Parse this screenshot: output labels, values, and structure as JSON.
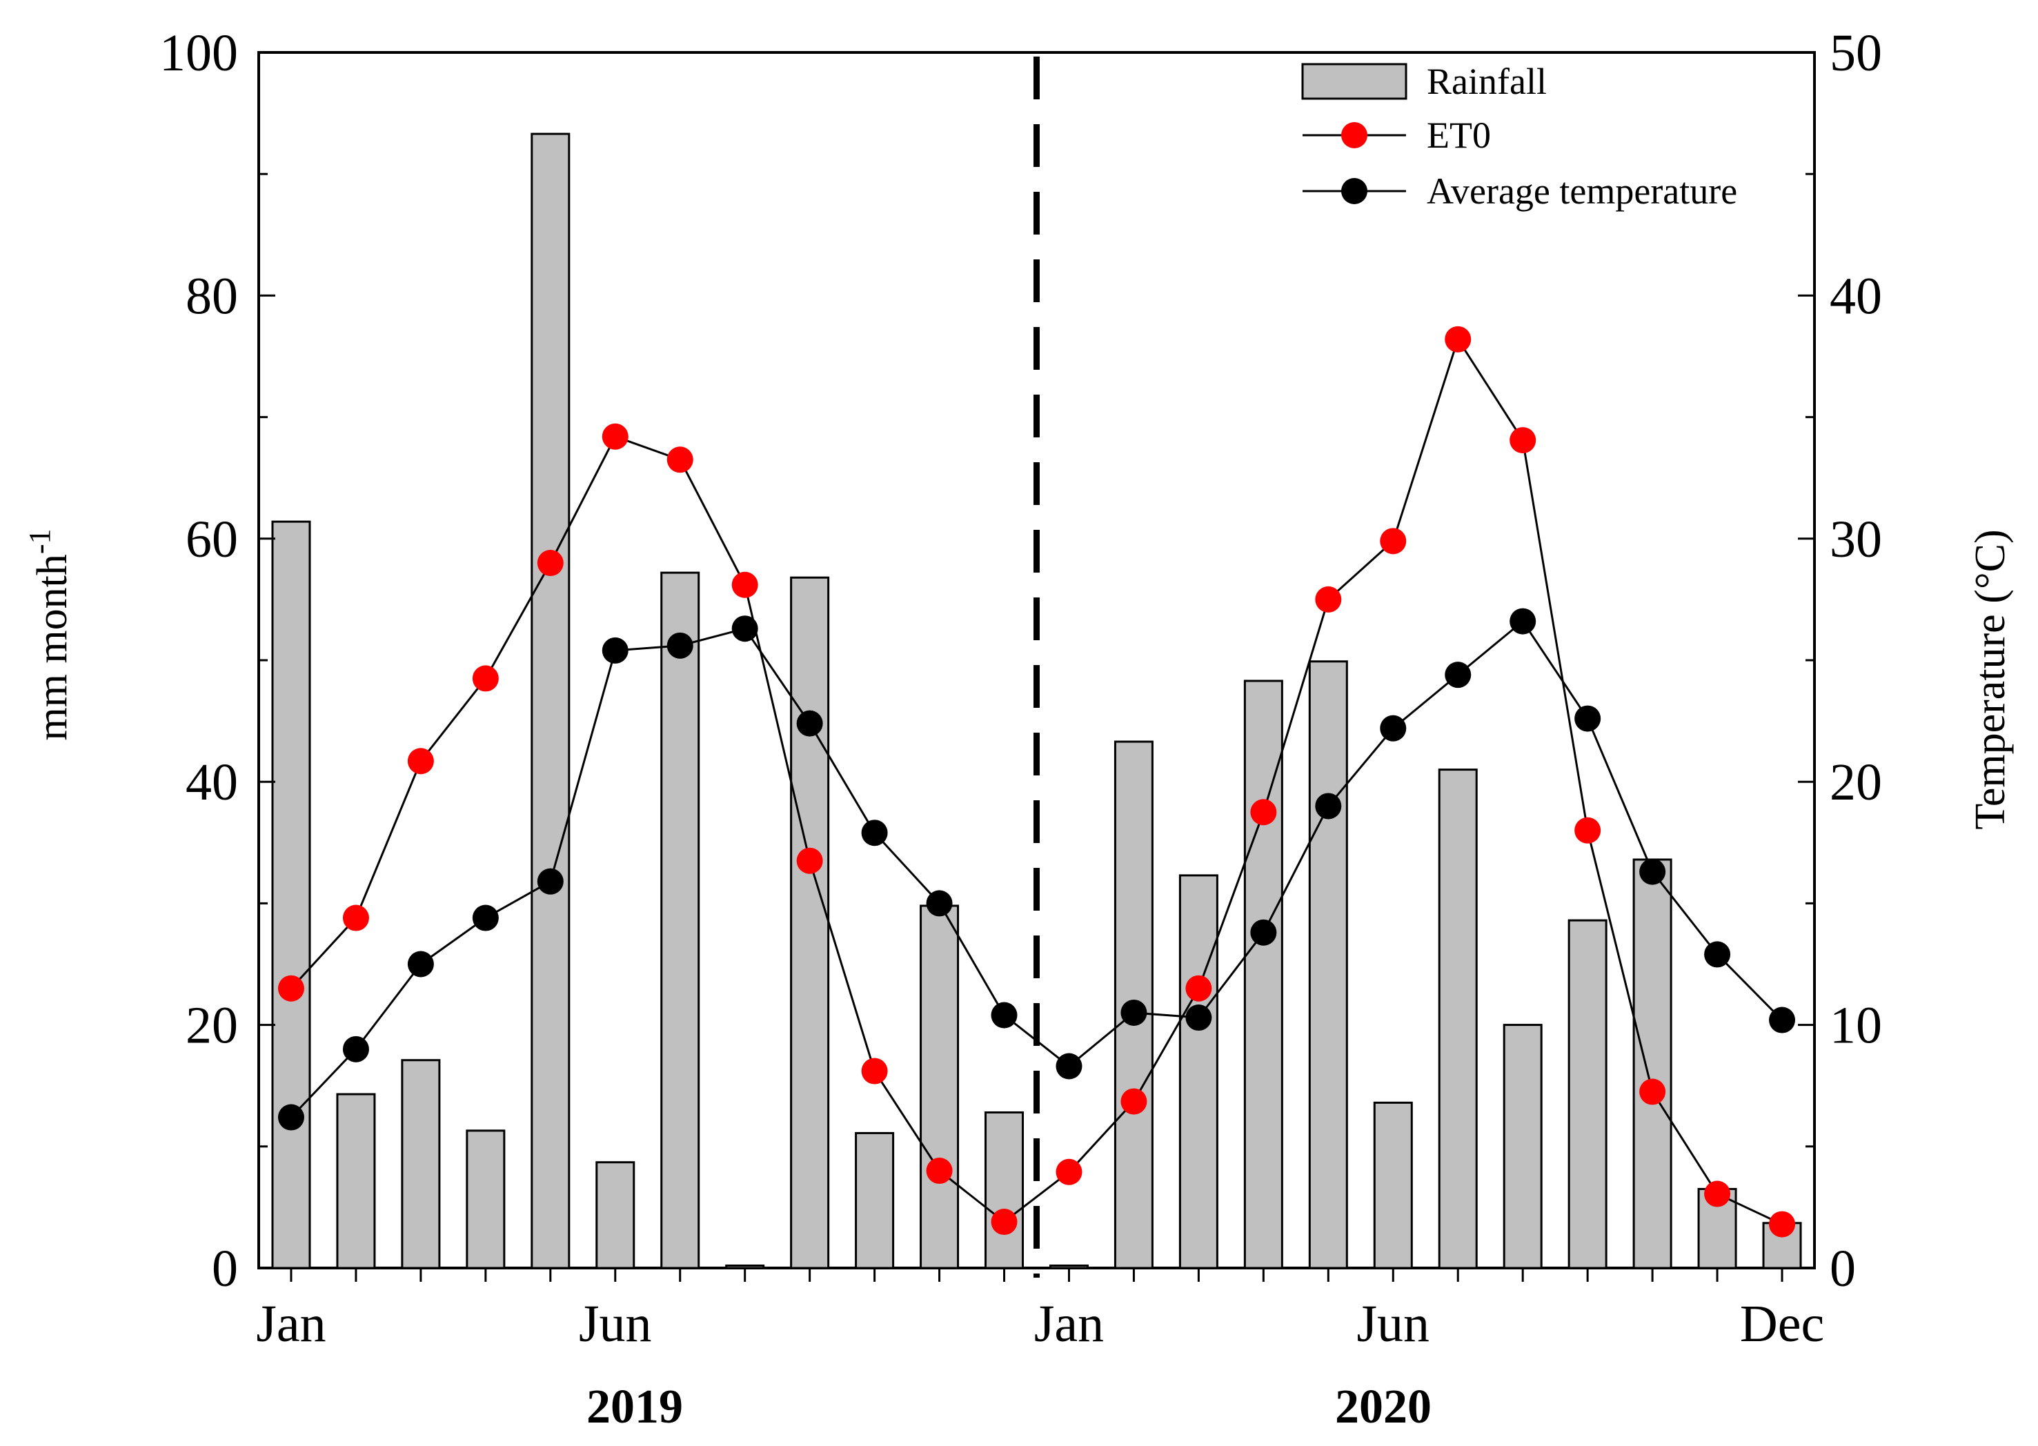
{
  "chart_data": {
    "type": "bar+line",
    "title": "",
    "ylabel_left": "mm month",
    "ylabel_left_superscript": "-1",
    "ylabel_right": "Temperature (°C)",
    "ylim_left": [
      0,
      100
    ],
    "ylim_right": [
      0,
      50
    ],
    "left_ticks": [
      "0",
      "20",
      "40",
      "60",
      "80",
      "100"
    ],
    "right_ticks": [
      "0",
      "10",
      "20",
      "30",
      "40",
      "50"
    ],
    "month_labels": [
      "Jan",
      "Jun",
      "Jan",
      "Jun",
      "Dec"
    ],
    "year_labels": [
      "2019",
      "2020"
    ],
    "categories": [
      "2019-01",
      "2019-02",
      "2019-03",
      "2019-04",
      "2019-05",
      "2019-06",
      "2019-07",
      "2019-08",
      "2019-09",
      "2019-10",
      "2019-11",
      "2019-12",
      "2020-01",
      "2020-02",
      "2020-03",
      "2020-04",
      "2020-05",
      "2020-06",
      "2020-07",
      "2020-08",
      "2020-09",
      "2020-10",
      "2020-11",
      "2020-12"
    ],
    "series": [
      {
        "name": "Rainfall",
        "kind": "bar",
        "axis": "left",
        "color": "#c0c0c0",
        "values": [
          61.4,
          14.3,
          17.1,
          11.3,
          93.3,
          8.7,
          57.2,
          0.2,
          56.8,
          11.1,
          29.8,
          12.8,
          0.2,
          43.3,
          32.3,
          48.3,
          49.9,
          13.6,
          41.0,
          20.0,
          28.6,
          33.6,
          6.5,
          3.7
        ]
      },
      {
        "name": "ET0",
        "kind": "line",
        "axis": "left",
        "color": "#ff0000",
        "values": [
          23.0,
          28.8,
          41.7,
          48.5,
          58.0,
          68.4,
          66.5,
          56.2,
          33.5,
          16.2,
          8.0,
          3.8,
          7.9,
          13.7,
          23.0,
          37.5,
          55.0,
          59.8,
          76.4,
          68.1,
          36.0,
          14.5,
          6.1,
          3.6
        ]
      },
      {
        "name": "Average temperature",
        "kind": "line",
        "axis": "right",
        "color": "#000000",
        "values": [
          6.2,
          9.0,
          12.5,
          14.4,
          15.9,
          25.4,
          25.6,
          26.3,
          22.4,
          17.9,
          15.0,
          10.4,
          8.3,
          10.5,
          10.3,
          13.8,
          19.0,
          22.2,
          24.4,
          26.6,
          22.6,
          16.3,
          12.9,
          10.2
        ]
      }
    ],
    "legend": {
      "placement": "top-right",
      "entries": [
        "Rainfall",
        "ET0",
        "Average temperature"
      ]
    }
  }
}
